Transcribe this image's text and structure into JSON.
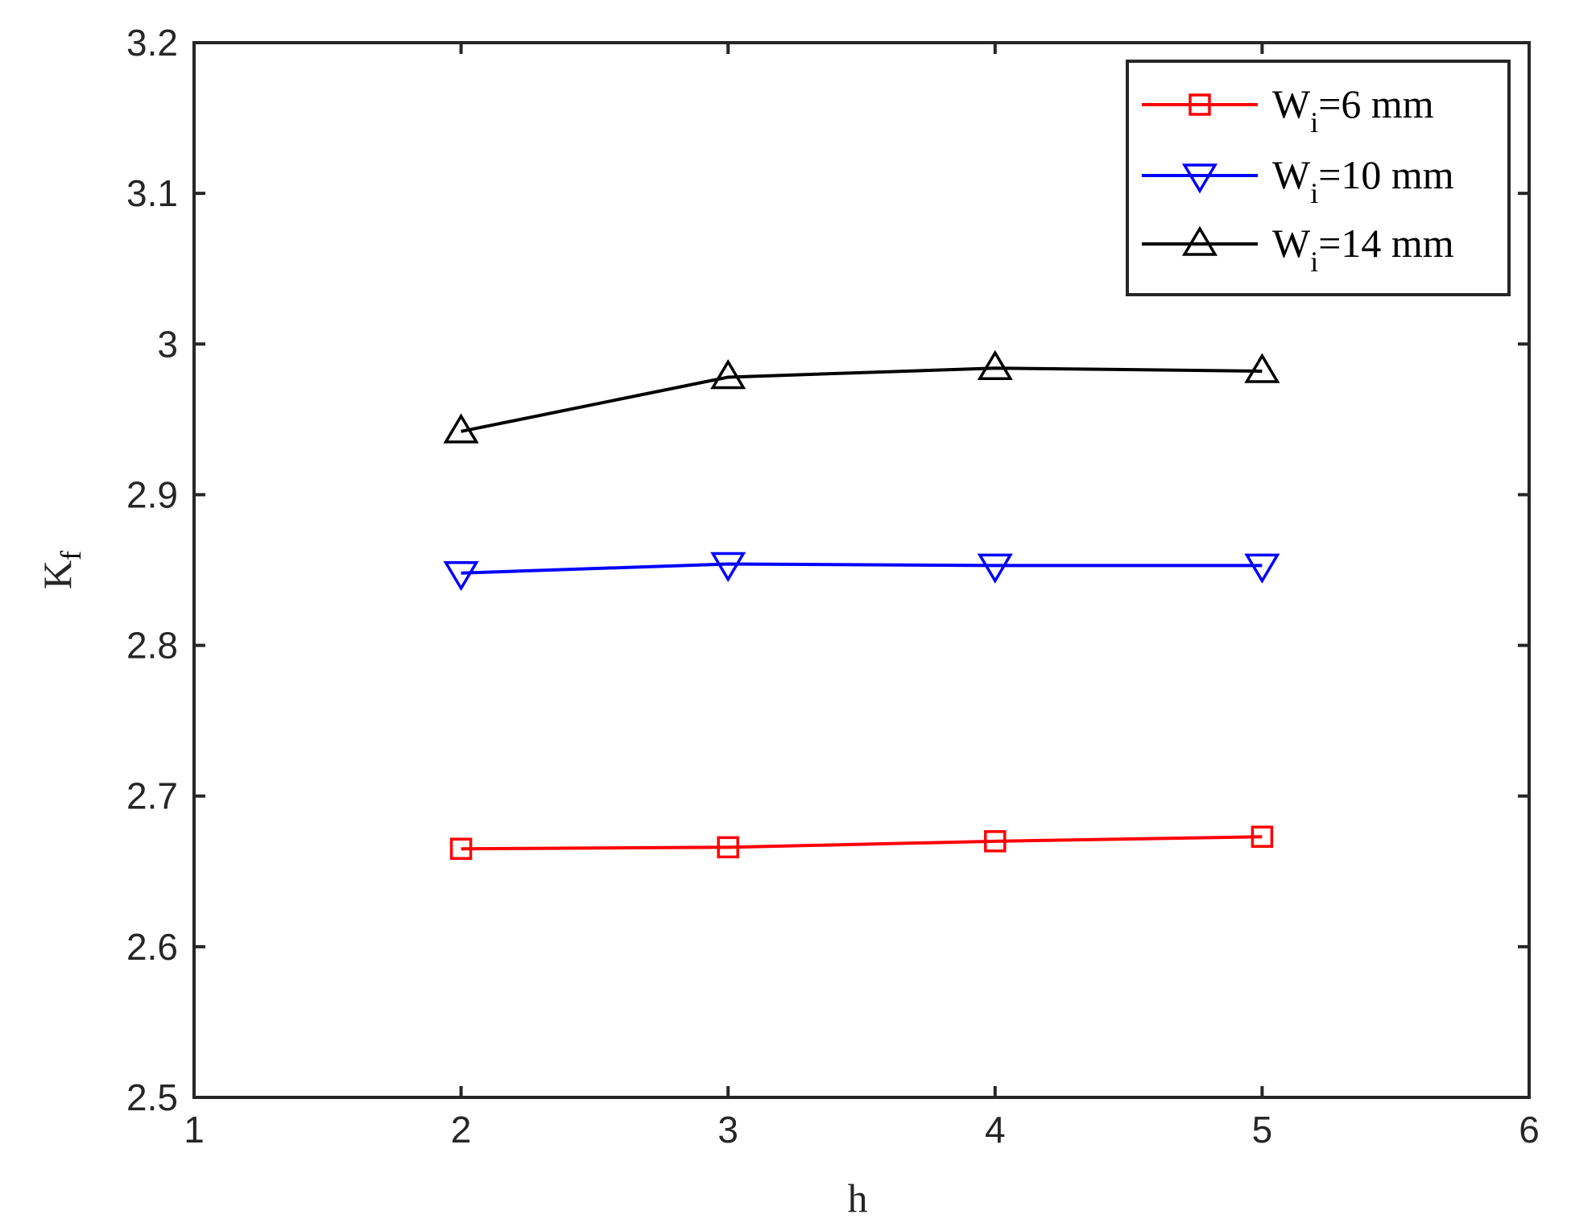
{
  "chart_data": {
    "type": "line",
    "xlabel": "h",
    "ylabel": {
      "main": "K",
      "sub": "f"
    },
    "xlim": [
      1,
      6
    ],
    "ylim": [
      2.5,
      3.2
    ],
    "x_ticks": [
      "1",
      "2",
      "3",
      "4",
      "5",
      "6"
    ],
    "y_ticks": [
      "2.5",
      "2.6",
      "2.7",
      "2.8",
      "2.9",
      "3",
      "3.1",
      "3.2"
    ],
    "x_tick_values": [
      1,
      2,
      3,
      4,
      5,
      6
    ],
    "y_tick_values": [
      2.5,
      2.6,
      2.7,
      2.8,
      2.9,
      3.0,
      3.1,
      3.2
    ],
    "grid": false,
    "legend_position": "top-right",
    "x": [
      2,
      3,
      4,
      5
    ],
    "series": [
      {
        "name": "W",
        "name_sub": "i",
        "name_suffix": "=6 mm",
        "marker": "square",
        "color": "#ff0000",
        "values": [
          2.665,
          2.666,
          2.67,
          2.673
        ]
      },
      {
        "name": "W",
        "name_sub": "i",
        "name_suffix": "=10 mm",
        "marker": "triangle-down",
        "color": "#0000ff",
        "values": [
          2.848,
          2.854,
          2.853,
          2.853
        ]
      },
      {
        "name": "W",
        "name_sub": "i",
        "name_suffix": "=14 mm",
        "marker": "triangle-up",
        "color": "#000000",
        "values": [
          2.942,
          2.978,
          2.984,
          2.982
        ]
      }
    ]
  }
}
